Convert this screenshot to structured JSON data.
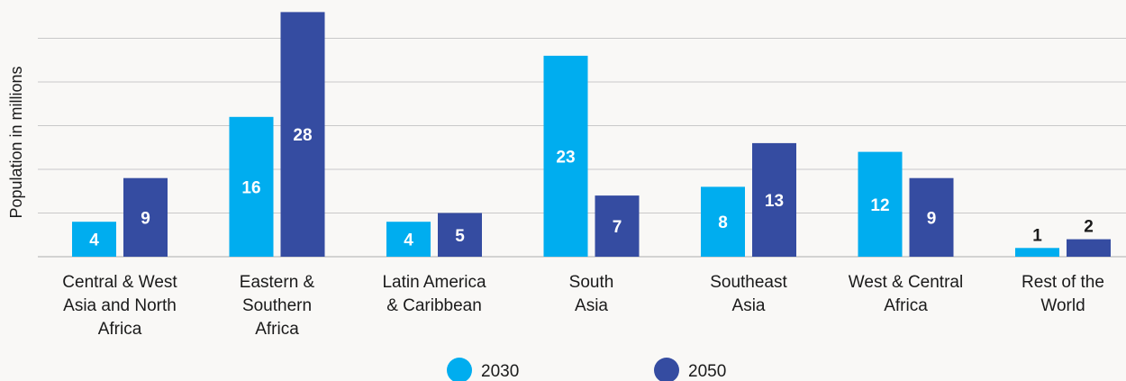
{
  "chart_data": {
    "type": "bar",
    "ylabel": "Population in millions",
    "ylim": [
      0,
      28
    ],
    "grid": true,
    "categories": [
      [
        "Central & West",
        "Asia and North",
        "Africa"
      ],
      [
        "Eastern &",
        "Southern",
        "Africa"
      ],
      [
        "Latin America",
        "& Caribbean"
      ],
      [
        "South",
        "Asia"
      ],
      [
        "Southeast",
        "Asia"
      ],
      [
        "West & Central",
        "Africa"
      ],
      [
        "Rest of the",
        "World"
      ]
    ],
    "series": [
      {
        "name": "2030",
        "color": "#00adef",
        "values": [
          4,
          16,
          4,
          23,
          8,
          12,
          1
        ],
        "labels": [
          "4",
          "16",
          "4",
          "23",
          "8",
          "12",
          "1"
        ]
      },
      {
        "name": "2050",
        "color": "#354ca1",
        "values": [
          9,
          28,
          5,
          7,
          13,
          9,
          2
        ],
        "labels": [
          "9",
          "28",
          "5",
          "7",
          "13",
          "9",
          "2"
        ]
      }
    ],
    "legend_position": "bottom"
  }
}
